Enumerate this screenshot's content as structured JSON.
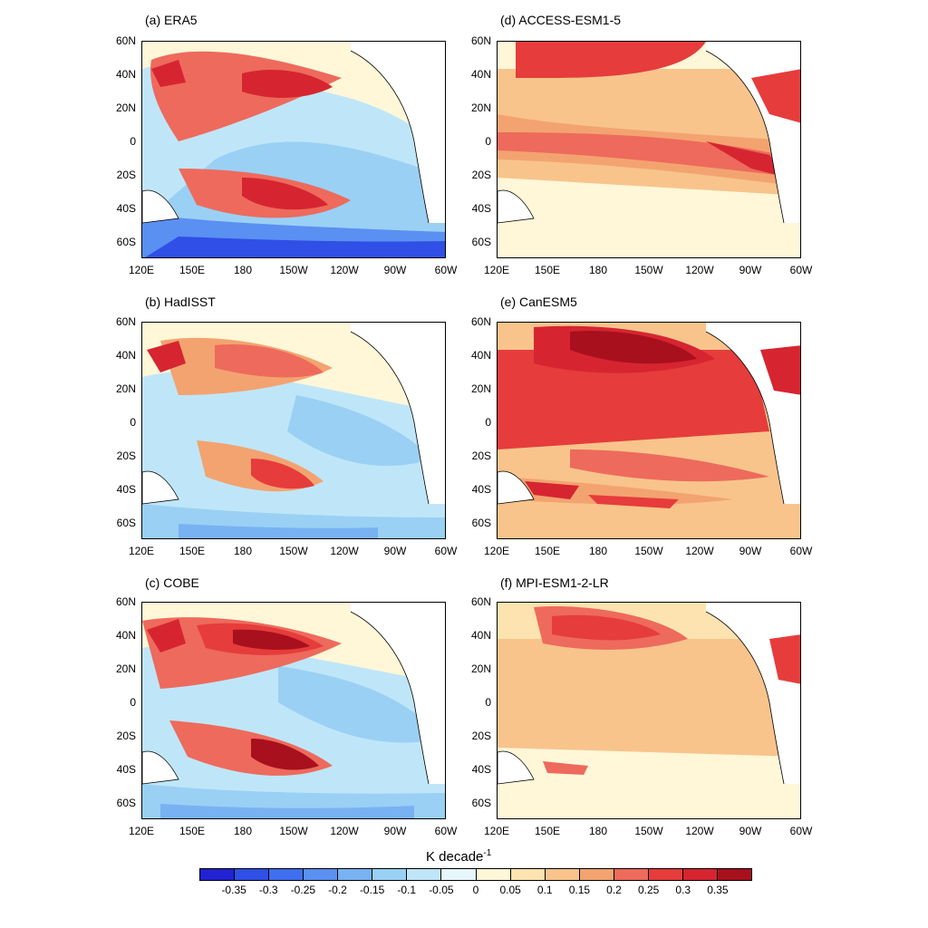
{
  "panels": [
    {
      "id": "a",
      "title": "(a) ERA5"
    },
    {
      "id": "b",
      "title": "(b) HadISST"
    },
    {
      "id": "c",
      "title": "(c) COBE"
    },
    {
      "id": "d",
      "title": "(d) ACCESS-ESM1-5"
    },
    {
      "id": "e",
      "title": "(e) CanESM5"
    },
    {
      "id": "f",
      "title": "(f) MPI-ESM1-2-LR"
    }
  ],
  "lat_ticks": [
    "60N",
    "40N",
    "20N",
    "0",
    "20S",
    "40S",
    "60S"
  ],
  "lon_ticks": [
    "120E",
    "150E",
    "180",
    "150W",
    "120W",
    "90W",
    "60W"
  ],
  "colorbar": {
    "title": "K decade",
    "title_superscript": "-1",
    "tick_labels": [
      "-0.35",
      "-0.3",
      "-0.25",
      "-0.2",
      "-0.15",
      "-0.1",
      "-0.05",
      "0",
      "0.05",
      "0.1",
      "0.15",
      "0.2",
      "0.25",
      "0.3",
      "0.35"
    ],
    "colors": [
      "#2222d2",
      "#2f4fe6",
      "#3f6ef0",
      "#5a90f2",
      "#78b2f2",
      "#9ad0f4",
      "#bfe6f8",
      "#e6f6fb",
      "#fff7d8",
      "#fde3b0",
      "#f8c48c",
      "#f3a370",
      "#ee6a5c",
      "#e63c3c",
      "#d62530",
      "#a8101e"
    ]
  },
  "map_extent": {
    "lon_min": 120,
    "lon_max": 300,
    "lat_min": -70,
    "lat_max": 60
  }
}
